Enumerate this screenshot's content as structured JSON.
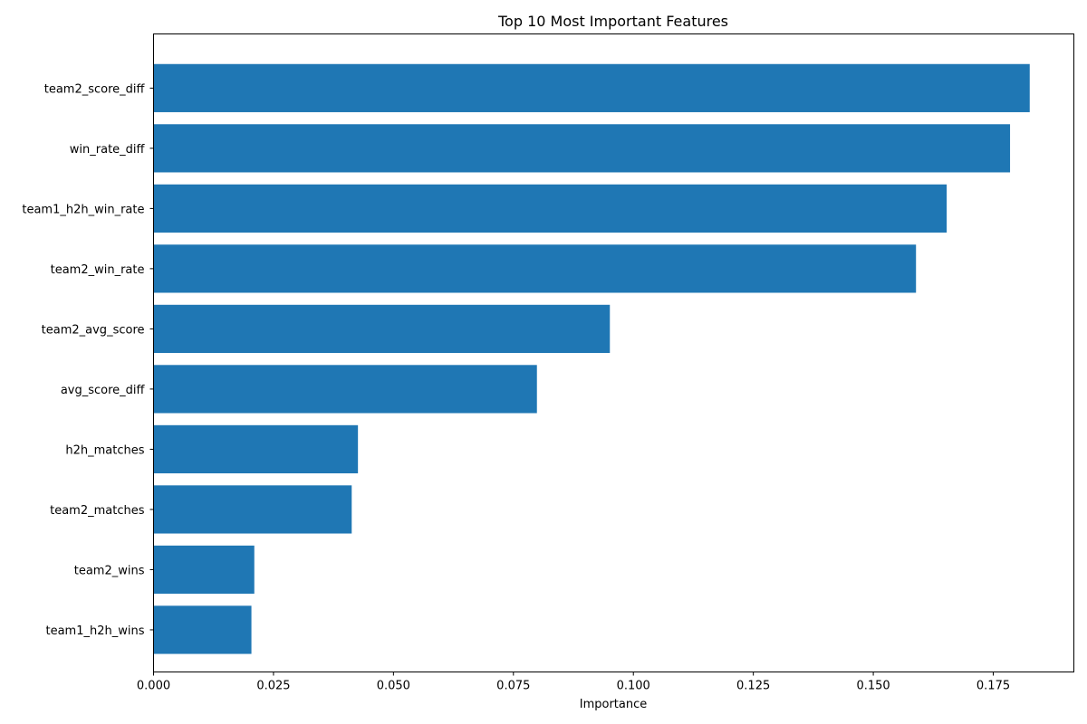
{
  "chart_data": {
    "type": "bar",
    "orientation": "horizontal",
    "title": "Top 10 Most Important Features",
    "xlabel": "Importance",
    "ylabel": "",
    "xlim": [
      0,
      0.1918
    ],
    "xticks": [
      0.0,
      0.025,
      0.05,
      0.075,
      0.1,
      0.125,
      0.15,
      0.175
    ],
    "xtick_labels": [
      "0.000",
      "0.025",
      "0.050",
      "0.075",
      "0.100",
      "0.125",
      "0.150",
      "0.175"
    ],
    "grid": false,
    "legend": "none",
    "bar_color": "#1f77b4",
    "categories": [
      "team2_score_diff",
      "win_rate_diff",
      "team1_h2h_win_rate",
      "team2_win_rate",
      "team2_avg_score",
      "avg_score_diff",
      "h2h_matches",
      "team2_matches",
      "team2_wins",
      "team1_h2h_wins"
    ],
    "values": [
      0.1826,
      0.1785,
      0.1653,
      0.1589,
      0.0951,
      0.0799,
      0.0426,
      0.0413,
      0.021,
      0.0204
    ]
  }
}
